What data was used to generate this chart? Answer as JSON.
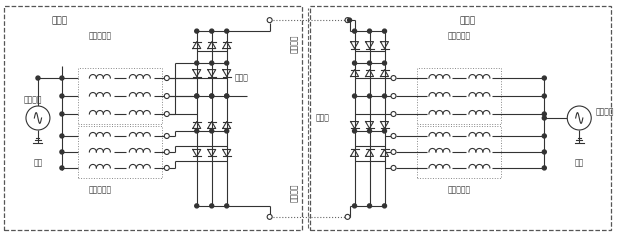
{
  "bg_color": "#ffffff",
  "lc": "#333333",
  "rectifier_label": "整流站",
  "inverter_label": "逆变站",
  "ac_grid_label": "交流电网",
  "voltage_label": "电压",
  "transformer_label": "换流变压器",
  "converter_label": "换流阀",
  "dc_upper_label": "直流线路",
  "dc_lower_label": "直流线路",
  "fig_width": 6.17,
  "fig_height": 2.36,
  "dpi": 100
}
